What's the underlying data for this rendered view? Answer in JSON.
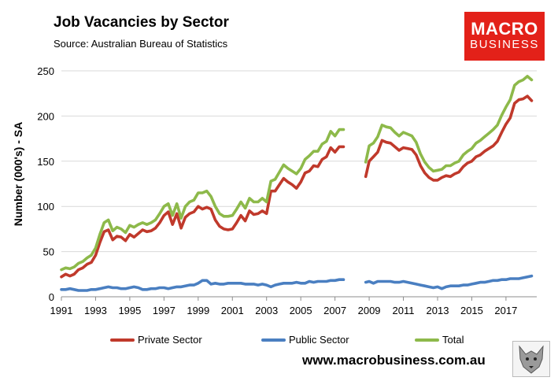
{
  "title": "Job Vacancies by Sector",
  "subtitle": "Source: Australian Bureau of Statistics",
  "logo": {
    "line1": "MACRO",
    "line2": "BUSINESS"
  },
  "website": "www.macrobusiness.com.au",
  "colors": {
    "private": "#c0392b",
    "public": "#4a7fc1",
    "total": "#8db94a",
    "logo_bg": "#e32119"
  },
  "chart_data": {
    "type": "line",
    "title": "Job Vacancies by Sector",
    "xlabel": "",
    "ylabel": "Number (000's) - SA",
    "ylim": [
      0,
      250
    ],
    "yticks": [
      0,
      50,
      100,
      150,
      200,
      250
    ],
    "xlim": [
      1991,
      2018.8
    ],
    "xticks": [
      1991,
      1993,
      1995,
      1997,
      1999,
      2001,
      2003,
      2005,
      2007,
      2009,
      2011,
      2013,
      2015,
      2017
    ],
    "grid": true,
    "legend": "bottom",
    "gap_note": "no data between 2008.5 and 2008.8",
    "series": [
      {
        "name": "Private Sector",
        "color": "#c0392b",
        "segments": [
          {
            "x": [
              1991,
              1991.25,
              1991.5,
              1991.75,
              1992,
              1992.25,
              1992.5,
              1992.75,
              1993,
              1993.25,
              1993.5,
              1993.75,
              1994,
              1994.25,
              1994.5,
              1994.75,
              1995,
              1995.25,
              1995.5,
              1995.75,
              1996,
              1996.25,
              1996.5,
              1996.75,
              1997,
              1997.25,
              1997.5,
              1997.75,
              1998,
              1998.25,
              1998.5,
              1998.75,
              1999,
              1999.25,
              1999.5,
              1999.75,
              2000,
              2000.25,
              2000.5,
              2000.75,
              2001,
              2001.25,
              2001.5,
              2001.75,
              2002,
              2002.25,
              2002.5,
              2002.75,
              2003,
              2003.25,
              2003.5,
              2003.75,
              2004,
              2004.25,
              2004.5,
              2004.75,
              2005,
              2005.25,
              2005.5,
              2005.75,
              2006,
              2006.25,
              2006.5,
              2006.75,
              2007,
              2007.25,
              2007.5
            ],
            "y": [
              22,
              25,
              23,
              25,
              30,
              32,
              36,
              38,
              46,
              60,
              72,
              74,
              63,
              67,
              66,
              62,
              69,
              66,
              70,
              74,
              72,
              73,
              76,
              82,
              90,
              94,
              80,
              92,
              76,
              88,
              92,
              94,
              100,
              97,
              99,
              97,
              85,
              78,
              75,
              74,
              75,
              82,
              90,
              84,
              95,
              91,
              92,
              95,
              92,
              117,
              117,
              124,
              131,
              127,
              124,
              120,
              127,
              137,
              139,
              145,
              144,
              152,
              155,
              165,
              160,
              166,
              166
            ]
          },
          {
            "x": [
              2008.8,
              2009,
              2009.25,
              2009.5,
              2009.75,
              2010,
              2010.25,
              2010.5,
              2010.75,
              2011,
              2011.25,
              2011.5,
              2011.75,
              2012,
              2012.25,
              2012.5,
              2012.75,
              2013,
              2013.25,
              2013.5,
              2013.75,
              2014,
              2014.25,
              2014.5,
              2014.75,
              2015,
              2015.25,
              2015.5,
              2015.75,
              2016,
              2016.25,
              2016.5,
              2016.75,
              2017,
              2017.25,
              2017.5,
              2017.75,
              2018,
              2018.25,
              2018.5
            ],
            "y": [
              133,
              150,
              155,
              160,
              173,
              171,
              170,
              166,
              162,
              165,
              164,
              163,
              157,
              145,
              137,
              132,
              129,
              129,
              132,
              134,
              133,
              136,
              138,
              144,
              148,
              150,
              155,
              157,
              161,
              164,
              167,
              172,
              182,
              191,
              198,
              214,
              218,
              219,
              222,
              217
            ]
          }
        ]
      },
      {
        "name": "Public Sector",
        "color": "#4a7fc1",
        "segments": [
          {
            "x": [
              1991,
              1991.25,
              1991.5,
              1991.75,
              1992,
              1992.25,
              1992.5,
              1992.75,
              1993,
              1993.25,
              1993.5,
              1993.75,
              1994,
              1994.25,
              1994.5,
              1994.75,
              1995,
              1995.25,
              1995.5,
              1995.75,
              1996,
              1996.25,
              1996.5,
              1996.75,
              1997,
              1997.25,
              1997.5,
              1997.75,
              1998,
              1998.25,
              1998.5,
              1998.75,
              1999,
              1999.25,
              1999.5,
              1999.75,
              2000,
              2000.25,
              2000.5,
              2000.75,
              2001,
              2001.25,
              2001.5,
              2001.75,
              2002,
              2002.25,
              2002.5,
              2002.75,
              2003,
              2003.25,
              2003.5,
              2003.75,
              2004,
              2004.25,
              2004.5,
              2004.75,
              2005,
              2005.25,
              2005.5,
              2005.75,
              2006,
              2006.25,
              2006.5,
              2006.75,
              2007,
              2007.25,
              2007.5
            ],
            "y": [
              8,
              8,
              9,
              8,
              7,
              7,
              7,
              8,
              8,
              9,
              10,
              11,
              10,
              10,
              9,
              9,
              10,
              11,
              10,
              8,
              8,
              9,
              9,
              10,
              10,
              9,
              10,
              11,
              11,
              12,
              13,
              13,
              15,
              18,
              18,
              14,
              15,
              14,
              14,
              15,
              15,
              15,
              15,
              14,
              14,
              14,
              13,
              14,
              13,
              11,
              13,
              14,
              15,
              15,
              15,
              16,
              15,
              15,
              17,
              16,
              17,
              17,
              17,
              18,
              18,
              19,
              19
            ]
          },
          {
            "x": [
              2008.8,
              2009,
              2009.25,
              2009.5,
              2009.75,
              2010,
              2010.25,
              2010.5,
              2010.75,
              2011,
              2011.25,
              2011.5,
              2011.75,
              2012,
              2012.25,
              2012.5,
              2012.75,
              2013,
              2013.25,
              2013.5,
              2013.75,
              2014,
              2014.25,
              2014.5,
              2014.75,
              2015,
              2015.25,
              2015.5,
              2015.75,
              2016,
              2016.25,
              2016.5,
              2016.75,
              2017,
              2017.25,
              2017.5,
              2017.75,
              2018,
              2018.25,
              2018.5
            ],
            "y": [
              16,
              17,
              15,
              17,
              17,
              17,
              17,
              16,
              16,
              17,
              16,
              15,
              14,
              13,
              12,
              11,
              10,
              11,
              9,
              11,
              12,
              12,
              12,
              13,
              13,
              14,
              15,
              16,
              16,
              17,
              18,
              18,
              19,
              19,
              20,
              20,
              20,
              21,
              22,
              23
            ]
          }
        ]
      },
      {
        "name": "Total",
        "color": "#8db94a",
        "segments": [
          {
            "x": [
              1991,
              1991.25,
              1991.5,
              1991.75,
              1992,
              1992.25,
              1992.5,
              1992.75,
              1993,
              1993.25,
              1993.5,
              1993.75,
              1994,
              1994.25,
              1994.5,
              1994.75,
              1995,
              1995.25,
              1995.5,
              1995.75,
              1996,
              1996.25,
              1996.5,
              1996.75,
              1997,
              1997.25,
              1997.5,
              1997.75,
              1998,
              1998.25,
              1998.5,
              1998.75,
              1999,
              1999.25,
              1999.5,
              1999.75,
              2000,
              2000.25,
              2000.5,
              2000.75,
              2001,
              2001.25,
              2001.5,
              2001.75,
              2002,
              2002.25,
              2002.5,
              2002.75,
              2003,
              2003.25,
              2003.5,
              2003.75,
              2004,
              2004.25,
              2004.5,
              2004.75,
              2005,
              2005.25,
              2005.5,
              2005.75,
              2006,
              2006.25,
              2006.5,
              2006.75,
              2007,
              2007.25,
              2007.5
            ],
            "y": [
              30,
              32,
              31,
              33,
              37,
              39,
              43,
              46,
              54,
              69,
              82,
              85,
              73,
              77,
              75,
              71,
              79,
              77,
              80,
              82,
              80,
              82,
              85,
              92,
              100,
              103,
              90,
              103,
              87,
              100,
              105,
              107,
              115,
              115,
              117,
              111,
              100,
              92,
              89,
              89,
              90,
              97,
              105,
              98,
              109,
              105,
              105,
              109,
              105,
              128,
              130,
              138,
              146,
              142,
              139,
              136,
              142,
              152,
              156,
              161,
              161,
              169,
              172,
              183,
              178,
              185,
              185
            ]
          },
          {
            "x": [
              2008.8,
              2009,
              2009.25,
              2009.5,
              2009.75,
              2010,
              2010.25,
              2010.5,
              2010.75,
              2011,
              2011.25,
              2011.5,
              2011.75,
              2012,
              2012.25,
              2012.5,
              2012.75,
              2013,
              2013.25,
              2013.5,
              2013.75,
              2014,
              2014.25,
              2014.5,
              2014.75,
              2015,
              2015.25,
              2015.5,
              2015.75,
              2016,
              2016.25,
              2016.5,
              2016.75,
              2017,
              2017.25,
              2017.5,
              2017.75,
              2018,
              2018.25,
              2018.5
            ],
            "y": [
              149,
              167,
              170,
              177,
              190,
              188,
              187,
              182,
              178,
              182,
              180,
              178,
              171,
              158,
              149,
              143,
              139,
              140,
              141,
              145,
              145,
              148,
              150,
              157,
              161,
              164,
              170,
              173,
              177,
              181,
              185,
              190,
              201,
              210,
              218,
              234,
              238,
              240,
              244,
              240
            ]
          }
        ]
      }
    ]
  }
}
